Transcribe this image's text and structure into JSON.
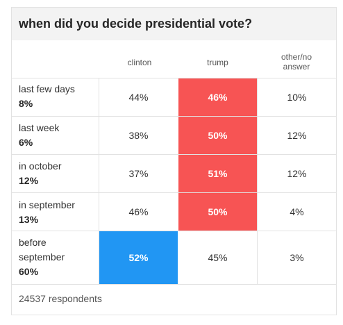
{
  "title": "when did you decide presidential vote?",
  "columns": {
    "clinton": "clinton",
    "trump": "trump",
    "other_line1": "other/no",
    "other_line2": "answer"
  },
  "rows": [
    {
      "label": "last few days",
      "share": "8%",
      "clinton": "44%",
      "trump": "46%",
      "other": "10%",
      "winner": "trump"
    },
    {
      "label": "last week",
      "share": "6%",
      "clinton": "38%",
      "trump": "50%",
      "other": "12%",
      "winner": "trump"
    },
    {
      "label": "in october",
      "share": "12%",
      "clinton": "37%",
      "trump": "51%",
      "other": "12%",
      "winner": "trump"
    },
    {
      "label": "in september",
      "share": "13%",
      "clinton": "46%",
      "trump": "50%",
      "other": "4%",
      "winner": "trump"
    },
    {
      "label_line1": "before",
      "label_line2": "september",
      "share": "60%",
      "clinton": "52%",
      "trump": "45%",
      "other": "3%",
      "winner": "clinton"
    }
  ],
  "footer": "24537 respondents",
  "colors": {
    "trump": "#f75454",
    "clinton": "#2196f3"
  }
}
